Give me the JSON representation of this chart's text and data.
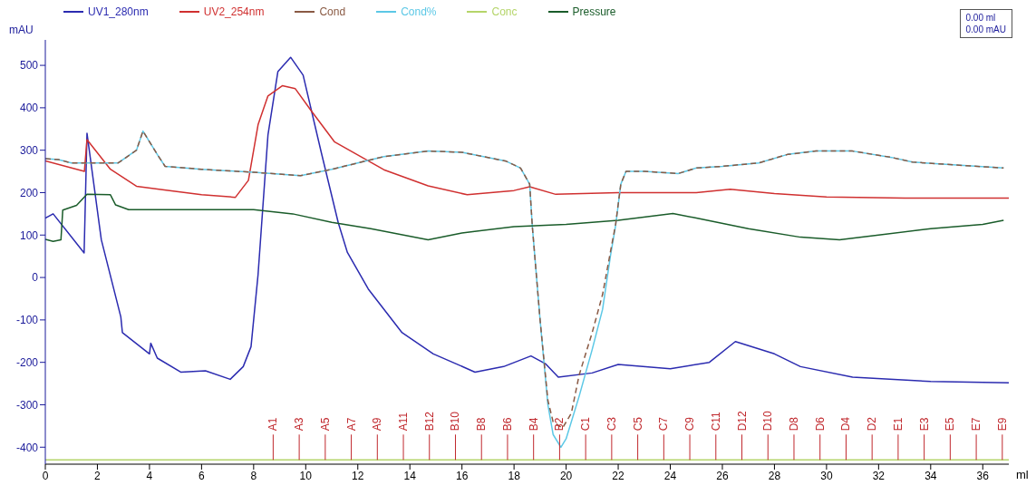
{
  "chart_data": {
    "type": "line",
    "xlabel": "ml",
    "ylabel": "mAU",
    "xlim": [
      0,
      37
    ],
    "ylim": [
      -440,
      560
    ],
    "xticks": [
      0,
      2,
      4,
      6,
      8,
      10,
      12,
      14,
      16,
      18,
      20,
      22,
      24,
      26,
      28,
      30,
      32,
      34,
      36
    ],
    "yticks": [
      -400,
      -300,
      -200,
      -100,
      0,
      100,
      200,
      300,
      400,
      500
    ],
    "legend": "top",
    "series": [
      {
        "name": "UV1_280nm",
        "color": "#2b2bb0",
        "x": [
          0,
          0.3,
          1.49,
          1.6,
          2.15,
          2.9,
          2.96,
          4.0,
          4.05,
          4.3,
          5.2,
          6.15,
          7.1,
          7.6,
          7.9,
          8.17,
          8.55,
          8.93,
          9.42,
          9.9,
          10.6,
          11.25,
          11.6,
          12.4,
          13.7,
          14.9,
          16.5,
          17.6,
          18.65,
          19.2,
          19.7,
          21,
          22,
          24,
          25.5,
          26.5,
          28,
          29,
          31,
          34,
          37
        ],
        "values": [
          140,
          150,
          58,
          340,
          89,
          -93,
          -130,
          -180,
          -155,
          -190,
          -223,
          -220,
          -240,
          -210,
          -163,
          7,
          336,
          485,
          519,
          477,
          294,
          129,
          59,
          -27,
          -130,
          -180,
          -223,
          -210,
          -185,
          -203,
          -235,
          -225,
          -205,
          -215,
          -200,
          -151,
          -180,
          -210,
          -235,
          -245,
          -248
        ]
      },
      {
        "name": "UV2_254nm",
        "color": "#d03030",
        "x": [
          0,
          1.5,
          1.6,
          2.5,
          3.5,
          4.5,
          6,
          7.3,
          7.8,
          8.17,
          8.55,
          9.1,
          9.6,
          10.2,
          11.1,
          13,
          14.7,
          16.2,
          18,
          18.6,
          19.6,
          22,
          24,
          25,
          26.3,
          28,
          30,
          33,
          37
        ],
        "values": [
          275,
          250,
          325,
          255,
          215,
          207,
          195,
          189,
          229,
          360,
          428,
          452,
          445,
          394,
          320,
          254,
          216,
          195,
          205,
          214,
          196,
          200,
          200,
          200,
          208,
          198,
          190,
          187,
          187
        ]
      },
      {
        "name": "Cond",
        "color": "#8a5a44",
        "line_style": "dashed",
        "x": [
          0,
          0.5,
          1,
          2.8,
          3.5,
          3.75,
          4.3,
          4.6,
          6,
          8,
          9.8,
          11,
          12,
          13,
          14.7,
          16,
          17.7,
          18.25,
          18.6,
          18.7,
          19,
          19.3,
          19.5,
          19.86,
          20.2,
          20.5,
          21,
          21.4,
          21.7,
          21.9,
          22.1,
          22.3,
          23,
          24.3,
          25,
          26,
          27.4,
          28.5,
          29.6,
          31,
          32.5,
          33.3,
          35,
          36.8
        ],
        "values": [
          280,
          278,
          270,
          270,
          300,
          345,
          290,
          262,
          255,
          248,
          240,
          255,
          270,
          285,
          298,
          295,
          274,
          258,
          220,
          122,
          -100,
          -290,
          -340,
          -355,
          -320,
          -230,
          -130,
          -40,
          60,
          125,
          220,
          250,
          250,
          245,
          258,
          262,
          270,
          290,
          298,
          298,
          283,
          272,
          265,
          258
        ]
      },
      {
        "name": "Cond%",
        "color": "#5cc8e6",
        "x": [
          0,
          0.5,
          1,
          2.8,
          3.5,
          3.75,
          4.3,
          4.6,
          6,
          8,
          9.8,
          11,
          12,
          13,
          14.7,
          16,
          17.7,
          18.25,
          18.6,
          18.7,
          19,
          19.3,
          19.5,
          19.8,
          20,
          20.5,
          21,
          21.4,
          21.7,
          21.9,
          22.1,
          22.3,
          23,
          24.3,
          25,
          26,
          27.4,
          28.5,
          29.6,
          31,
          32.5,
          33.3,
          35,
          36.8
        ],
        "values": [
          280,
          278,
          270,
          270,
          300,
          345,
          290,
          262,
          255,
          248,
          240,
          255,
          270,
          285,
          298,
          295,
          274,
          258,
          220,
          122,
          -100,
          -300,
          -370,
          -400,
          -380,
          -280,
          -170,
          -75,
          50,
          122,
          220,
          250,
          250,
          245,
          258,
          262,
          270,
          290,
          298,
          298,
          283,
          272,
          265,
          258
        ]
      },
      {
        "name": "Conc",
        "color": "#b5d56a",
        "x": [
          0,
          37
        ],
        "values": [
          -430,
          -430
        ]
      },
      {
        "name": "Pressure",
        "color": "#1a5c2a",
        "x": [
          0,
          0.3,
          0.6,
          0.67,
          1.2,
          1.6,
          2.5,
          2.7,
          3.2,
          4,
          6,
          8,
          9.5,
          11,
          12.5,
          14.7,
          16,
          18,
          20,
          22,
          24.1,
          25,
          27,
          29,
          30.5,
          32,
          34,
          36,
          36.8
        ],
        "values": [
          90,
          85,
          89,
          159,
          170,
          196,
          195,
          171,
          160,
          160,
          160,
          160,
          150,
          130,
          115,
          89,
          105,
          120,
          125,
          135,
          151,
          140,
          115,
          95,
          89,
          100,
          115,
          125,
          135
        ]
      }
    ],
    "annotations": [
      "0.00 ml",
      "0.00 mAU",
      {
        "text": "A1",
        "x": 8.75,
        "y": -430
      },
      {
        "text": "A3",
        "x": 9.75,
        "y": -430
      },
      {
        "text": "A5",
        "x": 10.75,
        "y": -430
      },
      {
        "text": "A7",
        "x": 11.75,
        "y": -430
      },
      {
        "text": "A9",
        "x": 12.75,
        "y": -430
      },
      {
        "text": "A11",
        "x": 13.75,
        "y": -430
      },
      {
        "text": "B12",
        "x": 14.75,
        "y": -430
      },
      {
        "text": "B10",
        "x": 15.75,
        "y": -430
      },
      {
        "text": "B8",
        "x": 16.75,
        "y": -430
      },
      {
        "text": "B6",
        "x": 17.75,
        "y": -430
      },
      {
        "text": "B4",
        "x": 18.75,
        "y": -430
      },
      {
        "text": "B2",
        "x": 19.75,
        "y": -430
      },
      {
        "text": "C1",
        "x": 20.75,
        "y": -430
      },
      {
        "text": "C3",
        "x": 21.75,
        "y": -430
      },
      {
        "text": "C5",
        "x": 22.75,
        "y": -430
      },
      {
        "text": "C7",
        "x": 23.75,
        "y": -430
      },
      {
        "text": "C9",
        "x": 24.75,
        "y": -430
      },
      {
        "text": "C11",
        "x": 25.75,
        "y": -430
      },
      {
        "text": "D12",
        "x": 26.75,
        "y": -430
      },
      {
        "text": "D10",
        "x": 27.75,
        "y": -430
      },
      {
        "text": "D8",
        "x": 28.75,
        "y": -430
      },
      {
        "text": "D6",
        "x": 29.75,
        "y": -430
      },
      {
        "text": "D4",
        "x": 30.75,
        "y": -430
      },
      {
        "text": "D2",
        "x": 31.75,
        "y": -430
      },
      {
        "text": "E1",
        "x": 32.75,
        "y": -430
      },
      {
        "text": "E3",
        "x": 33.75,
        "y": -430
      },
      {
        "text": "E5",
        "x": 34.75,
        "y": -430
      },
      {
        "text": "E7",
        "x": 35.75,
        "y": -430
      },
      {
        "text": "E9",
        "x": 36.75,
        "y": -430
      }
    ]
  }
}
